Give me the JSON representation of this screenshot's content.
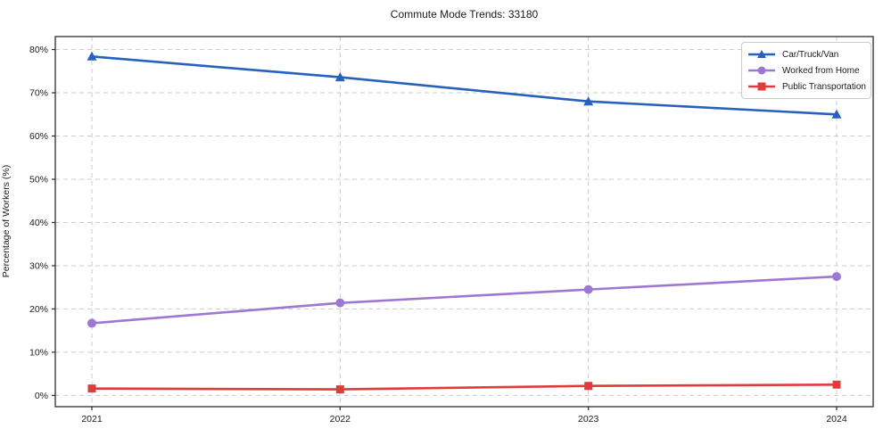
{
  "title": "Commute Mode Trends: 33180",
  "axes": {
    "ylabel": "Percentage of Workers (%)",
    "x_tick_labels": [
      "2021",
      "2022",
      "2023",
      "2024"
    ],
    "y_tick_labels": [
      "0%",
      "10%",
      "20%",
      "30%",
      "40%",
      "50%",
      "60%",
      "70%",
      "80%"
    ]
  },
  "colors": {
    "car": "#2860be",
    "home": "#9d78d2",
    "transit": "#e03c3c",
    "grid": "#cccccc",
    "spine": "#2b2b2b",
    "text": "#1a1a1a"
  },
  "chart_data": {
    "type": "line",
    "title": "Commute Mode Trends: 33180",
    "xlabel": "",
    "ylabel": "Percentage of Workers (%)",
    "categories": [
      2021,
      2022,
      2023,
      2024
    ],
    "ylim": [
      -2.6,
      83
    ],
    "y_tick_values": [
      0,
      10,
      20,
      30,
      40,
      50,
      60,
      70,
      80
    ],
    "grid": "dashed, both axes",
    "legend_position": "upper right",
    "series": [
      {
        "name": "Car/Truck/Van",
        "color": "#2860be",
        "marker": "triangle",
        "values": [
          78.4,
          73.6,
          68.0,
          65.0
        ]
      },
      {
        "name": "Worked from Home",
        "color": "#9d78d2",
        "marker": "circle",
        "values": [
          16.7,
          21.4,
          24.5,
          27.5
        ]
      },
      {
        "name": "Public Transportation",
        "color": "#e03c3c",
        "marker": "square",
        "values": [
          1.6,
          1.4,
          2.2,
          2.5
        ]
      }
    ]
  }
}
